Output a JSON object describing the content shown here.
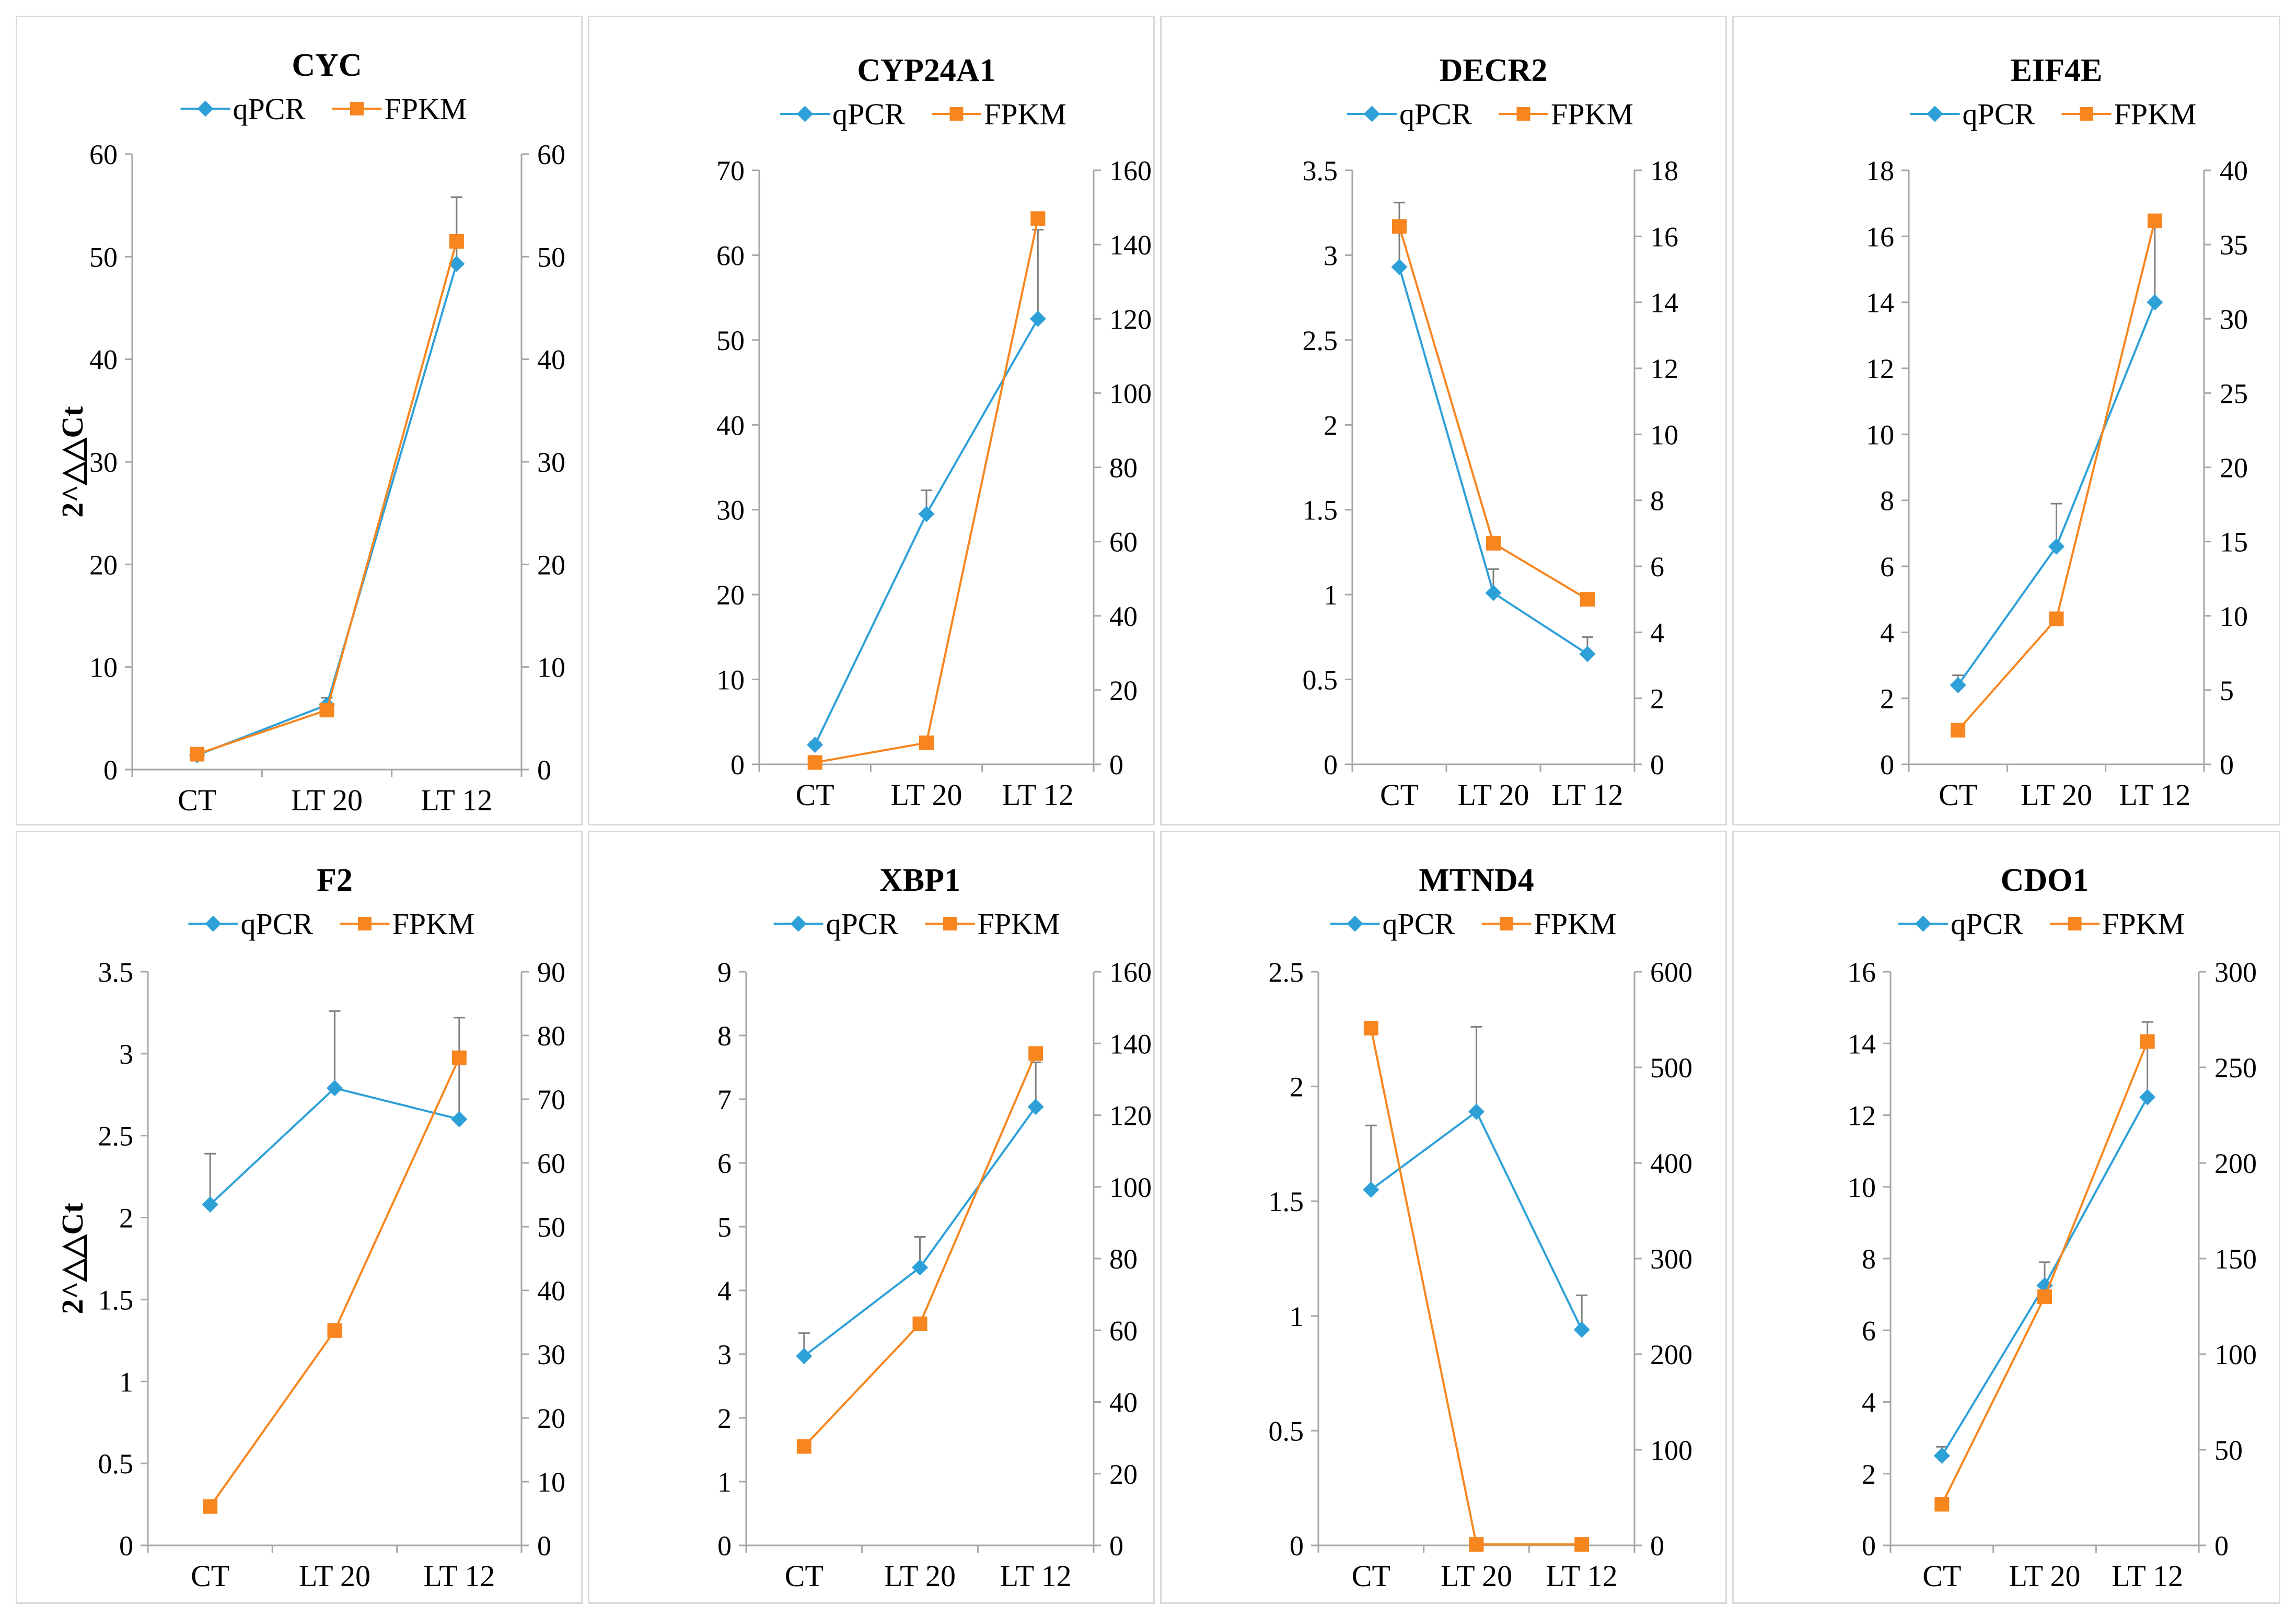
{
  "figure": {
    "y_axis_label": "2^△△Ct"
  },
  "legend": {
    "qpcr": "qPCR",
    "fpkm": "FPKM"
  },
  "colors": {
    "qpcr": "#2ea0d8",
    "fpkm": "#f7861f",
    "axis": "#a6a6a6",
    "error": "#7f7f7f"
  },
  "chart_data": [
    {
      "type": "line",
      "title": "CYC",
      "categories": [
        "CT",
        "LT 20",
        "LT 12"
      ],
      "y_label_shown": true,
      "left_axis": {
        "min": 0,
        "max": 60,
        "step": 10,
        "labels": [
          "0",
          "10",
          "20",
          "30",
          "40",
          "50",
          "60"
        ]
      },
      "right_axis": {
        "min": 0,
        "max": 60,
        "step": 10,
        "labels": [
          "0",
          "10",
          "20",
          "30",
          "40",
          "50",
          "60"
        ]
      },
      "series": [
        {
          "name": "qPCR",
          "axis": "left",
          "values": [
            1.4,
            6.3,
            49.3
          ],
          "errors": [
            0.3,
            0.7,
            6.5
          ]
        },
        {
          "name": "FPKM",
          "axis": "right",
          "values": [
            1.5,
            5.8,
            51.5
          ]
        }
      ]
    },
    {
      "type": "line",
      "title": "CYP24A1",
      "categories": [
        "CT",
        "LT 20",
        "LT 12"
      ],
      "y_label_shown": false,
      "left_axis": {
        "min": 0,
        "max": 70,
        "step": 10,
        "labels": [
          "0",
          "10",
          "20",
          "30",
          "40",
          "50",
          "60",
          "70"
        ]
      },
      "right_axis": {
        "min": 0,
        "max": 160,
        "step": 20,
        "labels": [
          "0",
          "20",
          "40",
          "60",
          "80",
          "100",
          "120",
          "140",
          "160"
        ]
      },
      "series": [
        {
          "name": "qPCR",
          "axis": "left",
          "values": [
            2.3,
            29.5,
            52.5
          ],
          "errors": [
            0.3,
            2.8,
            10.5
          ]
        },
        {
          "name": "FPKM",
          "axis": "right",
          "values": [
            0.5,
            5.8,
            147
          ]
        }
      ]
    },
    {
      "type": "line",
      "title": "DECR2",
      "categories": [
        "CT",
        "LT 20",
        "LT 12"
      ],
      "y_label_shown": false,
      "left_axis": {
        "min": 0,
        "max": 3.5,
        "step": 0.5,
        "labels": [
          "0",
          "0.5",
          "1",
          "1.5",
          "2",
          "2.5",
          "3",
          "3.5"
        ]
      },
      "right_axis": {
        "min": 0,
        "max": 18,
        "step": 2,
        "labels": [
          "0",
          "2",
          "4",
          "6",
          "8",
          "10",
          "12",
          "14",
          "16",
          "18"
        ]
      },
      "series": [
        {
          "name": "qPCR",
          "axis": "left",
          "values": [
            2.93,
            1.01,
            0.65
          ],
          "errors": [
            0.38,
            0.14,
            0.1
          ]
        },
        {
          "name": "FPKM",
          "axis": "right",
          "values": [
            16.3,
            6.7,
            5.0
          ]
        }
      ]
    },
    {
      "type": "line",
      "title": "EIF4E",
      "categories": [
        "CT",
        "LT 20",
        "LT 12"
      ],
      "y_label_shown": false,
      "left_axis": {
        "min": 0,
        "max": 18,
        "step": 2,
        "labels": [
          "0",
          "2",
          "4",
          "6",
          "8",
          "10",
          "12",
          "14",
          "16",
          "18"
        ]
      },
      "right_axis": {
        "min": 0,
        "max": 40,
        "step": 5,
        "labels": [
          "0",
          "5",
          "10",
          "15",
          "20",
          "25",
          "30",
          "35",
          "40"
        ]
      },
      "series": [
        {
          "name": "qPCR",
          "axis": "left",
          "values": [
            2.4,
            6.6,
            14.0
          ],
          "errors": [
            0.3,
            1.3,
            2.5
          ]
        },
        {
          "name": "FPKM",
          "axis": "right",
          "values": [
            2.3,
            9.8,
            36.6
          ]
        }
      ]
    },
    {
      "type": "line",
      "title": "F2",
      "categories": [
        "CT",
        "LT 20",
        "LT 12"
      ],
      "y_label_shown": true,
      "left_axis": {
        "min": 0,
        "max": 3.5,
        "step": 0.5,
        "labels": [
          "0",
          "0.5",
          "1",
          "1.5",
          "2",
          "2.5",
          "3",
          "3.5"
        ]
      },
      "right_axis": {
        "min": 0,
        "max": 90,
        "step": 10,
        "labels": [
          "0",
          "10",
          "20",
          "30",
          "40",
          "50",
          "60",
          "70",
          "80",
          "90"
        ]
      },
      "series": [
        {
          "name": "qPCR",
          "axis": "left",
          "values": [
            2.08,
            2.79,
            2.6
          ],
          "errors": [
            0.31,
            0.47,
            0.62
          ]
        },
        {
          "name": "FPKM",
          "axis": "right",
          "values": [
            6.1,
            33.7,
            76.5
          ]
        }
      ]
    },
    {
      "type": "line",
      "title": "XBP1",
      "categories": [
        "CT",
        "LT 20",
        "LT 12"
      ],
      "y_label_shown": false,
      "left_axis": {
        "min": 0,
        "max": 9,
        "step": 1,
        "labels": [
          "0",
          "1",
          "2",
          "3",
          "4",
          "5",
          "6",
          "7",
          "8",
          "9"
        ]
      },
      "right_axis": {
        "min": 0,
        "max": 160,
        "step": 20,
        "labels": [
          "0",
          "20",
          "40",
          "60",
          "80",
          "100",
          "120",
          "140",
          "160"
        ]
      },
      "series": [
        {
          "name": "qPCR",
          "axis": "left",
          "values": [
            2.97,
            4.36,
            6.88
          ],
          "errors": [
            0.36,
            0.48,
            0.7
          ]
        },
        {
          "name": "FPKM",
          "axis": "right",
          "values": [
            27.6,
            61.8,
            137.2
          ]
        }
      ]
    },
    {
      "type": "line",
      "title": "MTND4",
      "categories": [
        "CT",
        "LT 20",
        "LT 12"
      ],
      "y_label_shown": false,
      "left_axis": {
        "min": 0,
        "max": 2.5,
        "step": 0.5,
        "labels": [
          "0",
          "0.5",
          "1",
          "1.5",
          "2",
          "2.5"
        ]
      },
      "right_axis": {
        "min": 0,
        "max": 600,
        "step": 100,
        "labels": [
          "0",
          "100",
          "200",
          "300",
          "400",
          "500",
          "600"
        ]
      },
      "series": [
        {
          "name": "qPCR",
          "axis": "left",
          "values": [
            1.55,
            1.89,
            0.94
          ],
          "errors": [
            0.28,
            0.37,
            0.15
          ]
        },
        {
          "name": "FPKM",
          "axis": "right",
          "values": [
            541,
            1,
            1
          ]
        }
      ]
    },
    {
      "type": "line",
      "title": "CDO1",
      "categories": [
        "CT",
        "LT 20",
        "LT 12"
      ],
      "y_label_shown": false,
      "left_axis": {
        "min": 0,
        "max": 16,
        "step": 2,
        "labels": [
          "0",
          "2",
          "4",
          "6",
          "8",
          "10",
          "12",
          "14",
          "16"
        ]
      },
      "right_axis": {
        "min": 0,
        "max": 300,
        "step": 50,
        "labels": [
          "0",
          "50",
          "100",
          "150",
          "200",
          "250",
          "300"
        ]
      },
      "series": [
        {
          "name": "qPCR",
          "axis": "left",
          "values": [
            2.5,
            7.25,
            12.5
          ],
          "errors": [
            0.25,
            0.65,
            2.1
          ]
        },
        {
          "name": "FPKM",
          "axis": "right",
          "values": [
            21.5,
            130,
            263.5
          ]
        }
      ]
    }
  ]
}
